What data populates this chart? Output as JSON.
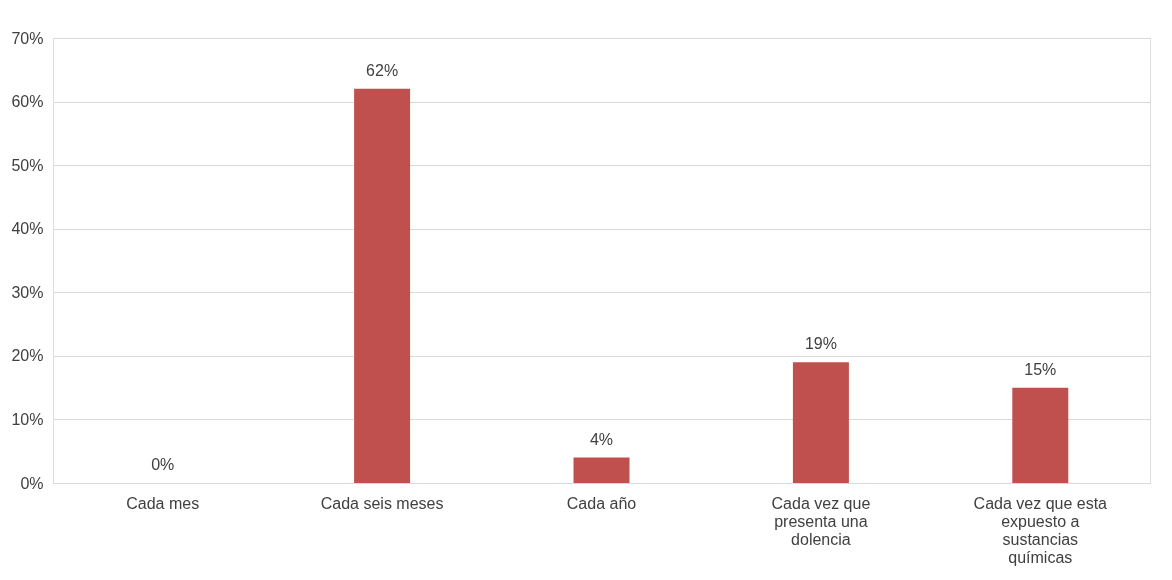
{
  "chart_data": {
    "type": "bar",
    "categories": [
      "Cada mes",
      "Cada seis meses",
      "Cada año",
      "Cada vez que presenta una dolencia",
      "Cada vez que esta expuesto a sustancias químicas"
    ],
    "values": [
      0,
      62,
      4,
      19,
      15
    ],
    "value_labels": [
      "0%",
      "62%",
      "4%",
      "19%",
      "15%"
    ],
    "color": "#c0504d",
    "ylim": [
      0,
      70
    ],
    "yticks": [
      {
        "value": 0,
        "label": "0%"
      },
      {
        "value": 10,
        "label": "10%"
      },
      {
        "value": 20,
        "label": "20%"
      },
      {
        "value": 30,
        "label": "30%"
      },
      {
        "value": 40,
        "label": "40%"
      },
      {
        "value": 50,
        "label": "50%"
      },
      {
        "value": 60,
        "label": "60%"
      },
      {
        "value": 70,
        "label": "70%"
      }
    ],
    "grid": "y"
  }
}
